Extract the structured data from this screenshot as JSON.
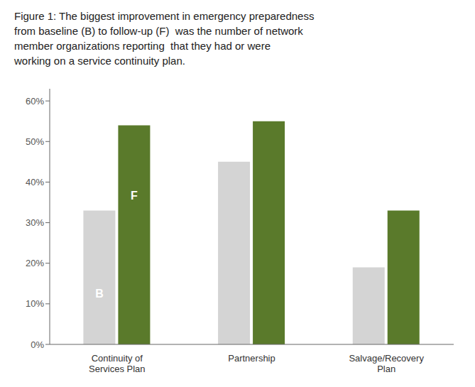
{
  "chart_data": {
    "type": "bar",
    "title": "Figure 1: The biggest improvement in emergency preparedness\nfrom baseline (B) to follow-up (F)  was the number of network\nmember organizations reporting  that they had or were\nworking on a service continuity plan.",
    "categories": [
      "Continuity of\nServices Plan",
      "Partnership",
      "Salvage/Recovery\nPlan"
    ],
    "series": [
      {
        "name": "B",
        "color": "#d4d4d4",
        "values": [
          0.33,
          0.45,
          0.19
        ]
      },
      {
        "name": "F",
        "color": "#5a7a2b",
        "values": [
          0.54,
          0.55,
          0.33
        ]
      }
    ],
    "ylim": [
      0,
      0.63
    ],
    "yticks": [
      {
        "value": 0.0,
        "label": "0%"
      },
      {
        "value": 0.1,
        "label": "10%"
      },
      {
        "value": 0.2,
        "label": "20%"
      },
      {
        "value": 0.3,
        "label": "30%"
      },
      {
        "value": 0.4,
        "label": "40%"
      },
      {
        "value": 0.5,
        "label": "50%"
      },
      {
        "value": 0.6,
        "label": "60%"
      }
    ],
    "grid": false
  }
}
